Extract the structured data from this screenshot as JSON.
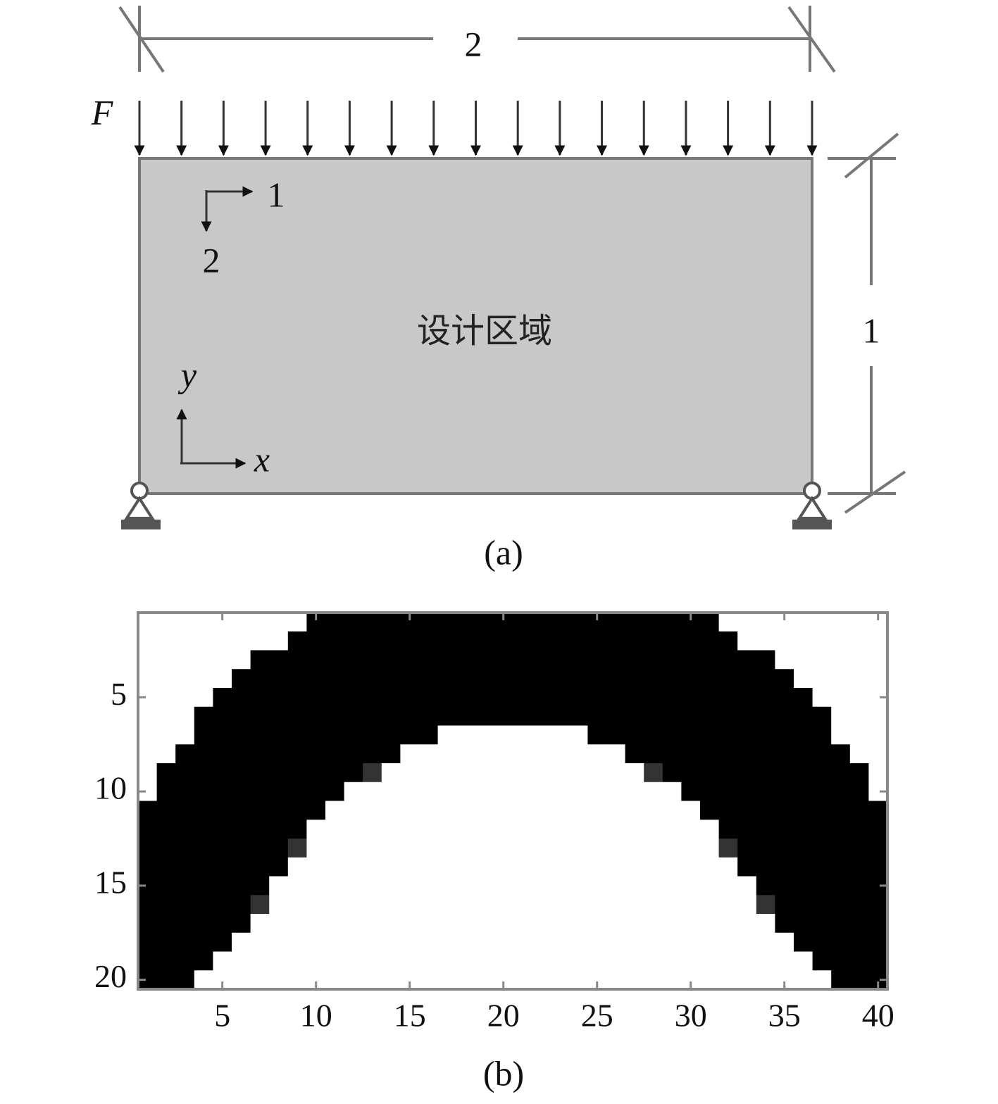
{
  "figure_a": {
    "width_label": "2",
    "height_label": "1",
    "load_label": "F",
    "material_axes": [
      "1",
      "2"
    ],
    "region_label": "设计区域",
    "coordinate_axes": [
      "x",
      "y"
    ],
    "caption": "(a)"
  },
  "chart_data": {
    "type": "heatmap",
    "caption": "(b)",
    "xlim": [
      0.5,
      40.5
    ],
    "ylim": [
      0.5,
      20.5
    ],
    "y_inverted": true,
    "xticks": [
      5,
      10,
      15,
      20,
      25,
      30,
      35,
      40
    ],
    "yticks": [
      5,
      10,
      15,
      20
    ],
    "colors": {
      "low": "#ffffff",
      "high": "#000000"
    },
    "values": [
      [
        0,
        0,
        0,
        0,
        0,
        0,
        0,
        0,
        0,
        1,
        1,
        1,
        1,
        1,
        1,
        1,
        1,
        1,
        1,
        1,
        1,
        1,
        1,
        1,
        1,
        1,
        1,
        1,
        1,
        1,
        1,
        0,
        0,
        0,
        0,
        0,
        0,
        0,
        0,
        0
      ],
      [
        0,
        0,
        0,
        0,
        0,
        0,
        0,
        0,
        1,
        1,
        1,
        1,
        1,
        1,
        1,
        1,
        1,
        1,
        1,
        1,
        1,
        1,
        1,
        1,
        1,
        1,
        1,
        1,
        1,
        1,
        1,
        1,
        0,
        0,
        0,
        0,
        0,
        0,
        0,
        0
      ],
      [
        0,
        0,
        0,
        0,
        0,
        0,
        1,
        1,
        1,
        1,
        1,
        1,
        1,
        1,
        1,
        1,
        1,
        1,
        1,
        1,
        1,
        1,
        1,
        1,
        1,
        1,
        1,
        1,
        1,
        1,
        1,
        1,
        1,
        1,
        0,
        0,
        0,
        0,
        0,
        0
      ],
      [
        0,
        0,
        0,
        0,
        0,
        1,
        1,
        1,
        1,
        1,
        1,
        1,
        1,
        1,
        1,
        1,
        1,
        1,
        1,
        1,
        1,
        1,
        1,
        1,
        1,
        1,
        1,
        1,
        1,
        1,
        1,
        1,
        1,
        1,
        1,
        0,
        0,
        0,
        0,
        0
      ],
      [
        0,
        0,
        0,
        0,
        1,
        1,
        1,
        1,
        1,
        1,
        1,
        1,
        1,
        1,
        1,
        1,
        1,
        1,
        1,
        1,
        1,
        1,
        1,
        1,
        1,
        1,
        1,
        1,
        1,
        1,
        1,
        1,
        1,
        1,
        1,
        1,
        0,
        0,
        0,
        0
      ],
      [
        0,
        0,
        0,
        1,
        1,
        1,
        1,
        1,
        1,
        1,
        1,
        1,
        1,
        1,
        1,
        1,
        1,
        1,
        1,
        1,
        1,
        1,
        1,
        1,
        1,
        1,
        1,
        1,
        1,
        1,
        1,
        1,
        1,
        1,
        1,
        1,
        1,
        0,
        0,
        0
      ],
      [
        0,
        0,
        0,
        1,
        1,
        1,
        1,
        1,
        1,
        1,
        1,
        1,
        1,
        1,
        1,
        1,
        0,
        0,
        0,
        0,
        0,
        0,
        0,
        0,
        1,
        1,
        1,
        1,
        1,
        1,
        1,
        1,
        1,
        1,
        1,
        1,
        1,
        0,
        0,
        0
      ],
      [
        0,
        0,
        1,
        1,
        1,
        1,
        1,
        1,
        1,
        1,
        1,
        1,
        1,
        1,
        0,
        0,
        0,
        0,
        0,
        0,
        0,
        0,
        0,
        0,
        0,
        0,
        1,
        1,
        1,
        1,
        1,
        1,
        1,
        1,
        1,
        1,
        1,
        1,
        0,
        0
      ],
      [
        0,
        1,
        1,
        1,
        1,
        1,
        1,
        1,
        1,
        1,
        1,
        1,
        0.8,
        0,
        0,
        0,
        0,
        0,
        0,
        0,
        0,
        0,
        0,
        0,
        0,
        0,
        0,
        0.8,
        1,
        1,
        1,
        1,
        1,
        1,
        1,
        1,
        1,
        1,
        1,
        0
      ],
      [
        0,
        1,
        1,
        1,
        1,
        1,
        1,
        1,
        1,
        1,
        1,
        0,
        0,
        0,
        0,
        0,
        0,
        0,
        0,
        0,
        0,
        0,
        0,
        0,
        0,
        0,
        0,
        0,
        0,
        1,
        1,
        1,
        1,
        1,
        1,
        1,
        1,
        1,
        1,
        0
      ],
      [
        1,
        1,
        1,
        1,
        1,
        1,
        1,
        1,
        1,
        1,
        0,
        0,
        0,
        0,
        0,
        0,
        0,
        0,
        0,
        0,
        0,
        0,
        0,
        0,
        0,
        0,
        0,
        0,
        0,
        0,
        1,
        1,
        1,
        1,
        1,
        1,
        1,
        1,
        1,
        1
      ],
      [
        1,
        1,
        1,
        1,
        1,
        1,
        1,
        1,
        1,
        0,
        0,
        0,
        0,
        0,
        0,
        0,
        0,
        0,
        0,
        0,
        0,
        0,
        0,
        0,
        0,
        0,
        0,
        0,
        0,
        0,
        0,
        1,
        1,
        1,
        1,
        1,
        1,
        1,
        1,
        1
      ],
      [
        1,
        1,
        1,
        1,
        1,
        1,
        1,
        1,
        0.8,
        0,
        0,
        0,
        0,
        0,
        0,
        0,
        0,
        0,
        0,
        0,
        0,
        0,
        0,
        0,
        0,
        0,
        0,
        0,
        0,
        0,
        0,
        0.8,
        1,
        1,
        1,
        1,
        1,
        1,
        1,
        1
      ],
      [
        1,
        1,
        1,
        1,
        1,
        1,
        1,
        1,
        0,
        0,
        0,
        0,
        0,
        0,
        0,
        0,
        0,
        0,
        0,
        0,
        0,
        0,
        0,
        0,
        0,
        0,
        0,
        0,
        0,
        0,
        0,
        0,
        1,
        1,
        1,
        1,
        1,
        1,
        1,
        1
      ],
      [
        1,
        1,
        1,
        1,
        1,
        1,
        1,
        0,
        0,
        0,
        0,
        0,
        0,
        0,
        0,
        0,
        0,
        0,
        0,
        0,
        0,
        0,
        0,
        0,
        0,
        0,
        0,
        0,
        0,
        0,
        0,
        0,
        0,
        1,
        1,
        1,
        1,
        1,
        1,
        1
      ],
      [
        1,
        1,
        1,
        1,
        1,
        1,
        0.8,
        0,
        0,
        0,
        0,
        0,
        0,
        0,
        0,
        0,
        0,
        0,
        0,
        0,
        0,
        0,
        0,
        0,
        0,
        0,
        0,
        0,
        0,
        0,
        0,
        0,
        0,
        0.8,
        1,
        1,
        1,
        1,
        1,
        1
      ],
      [
        1,
        1,
        1,
        1,
        1,
        1,
        0,
        0,
        0,
        0,
        0,
        0,
        0,
        0,
        0,
        0,
        0,
        0,
        0,
        0,
        0,
        0,
        0,
        0,
        0,
        0,
        0,
        0,
        0,
        0,
        0,
        0,
        0,
        0,
        1,
        1,
        1,
        1,
        1,
        1
      ],
      [
        1,
        1,
        1,
        1,
        1,
        0,
        0,
        0,
        0,
        0,
        0,
        0,
        0,
        0,
        0,
        0,
        0,
        0,
        0,
        0,
        0,
        0,
        0,
        0,
        0,
        0,
        0,
        0,
        0,
        0,
        0,
        0,
        0,
        0,
        0,
        1,
        1,
        1,
        1,
        1
      ],
      [
        1,
        1,
        1,
        1,
        0,
        0,
        0,
        0,
        0,
        0,
        0,
        0,
        0,
        0,
        0,
        0,
        0,
        0,
        0,
        0,
        0,
        0,
        0,
        0,
        0,
        0,
        0,
        0,
        0,
        0,
        0,
        0,
        0,
        0,
        0,
        0,
        1,
        1,
        1,
        1
      ],
      [
        1,
        1,
        1,
        0,
        0,
        0,
        0,
        0,
        0,
        0,
        0,
        0,
        0,
        0,
        0,
        0,
        0,
        0,
        0,
        0,
        0,
        0,
        0,
        0,
        0,
        0,
        0,
        0,
        0,
        0,
        0,
        0,
        0,
        0,
        0,
        0,
        0,
        1,
        1,
        1
      ]
    ]
  }
}
